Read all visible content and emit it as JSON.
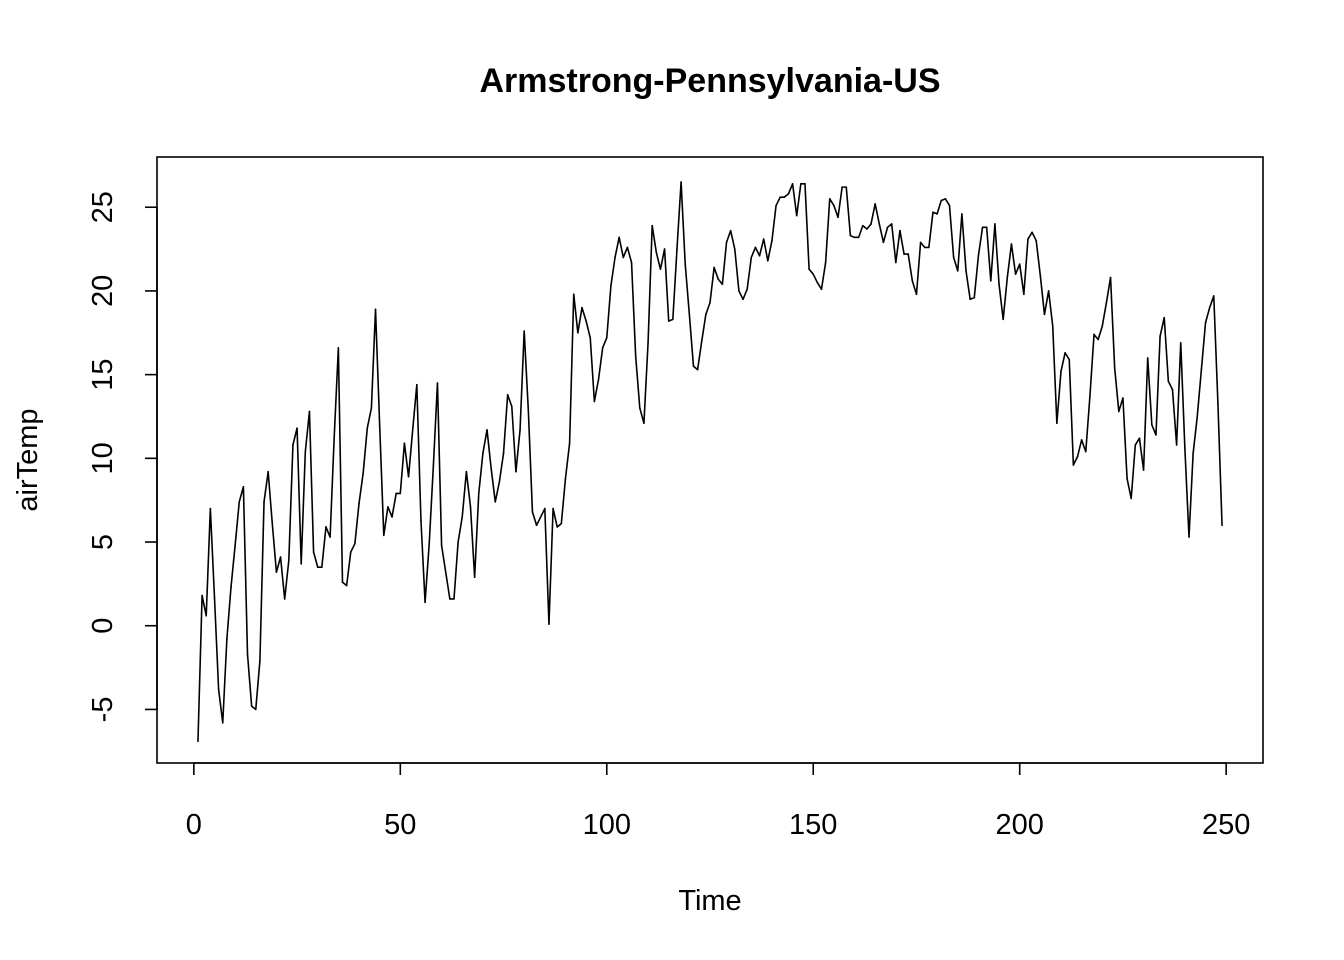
{
  "chart_data": {
    "type": "line",
    "title": "Armstrong-Pennsylvania-US",
    "xlabel": "Time",
    "ylabel": "airTemp",
    "xlim": [
      -8.92,
      258.92
    ],
    "ylim": [
      -8.2,
      28.0
    ],
    "x_ticks": [
      0,
      50,
      100,
      150,
      200,
      250
    ],
    "x_tick_labels": [
      "0",
      "50",
      "100",
      "150",
      "200",
      "250"
    ],
    "y_ticks": [
      -5,
      0,
      5,
      10,
      15,
      20,
      25
    ],
    "y_tick_labels": [
      "-5",
      "0",
      "5",
      "10",
      "15",
      "20",
      "25"
    ],
    "grid": false,
    "legend": "none",
    "line_color": "#000000",
    "series": [
      {
        "x_start": 1,
        "x_step": 1,
        "values": [
          -6.9,
          1.8,
          0.6,
          7.0,
          1.7,
          -3.8,
          -5.8,
          -0.8,
          2.3,
          4.8,
          7.4,
          8.3,
          -1.7,
          -4.8,
          -5.0,
          -2.1,
          7.4,
          9.2,
          6.1,
          3.2,
          4.1,
          1.6,
          3.9,
          10.8,
          11.8,
          3.7,
          10.4,
          12.8,
          4.4,
          3.5,
          3.5,
          5.9,
          5.3,
          11.3,
          16.6,
          2.6,
          2.4,
          4.4,
          4.9,
          7.3,
          9.1,
          11.8,
          13.0,
          18.9,
          12.0,
          5.4,
          7.1,
          6.5,
          7.9,
          7.9,
          10.9,
          8.9,
          11.7,
          14.4,
          6.3,
          1.4,
          4.9,
          9.5,
          14.5,
          4.8,
          3.2,
          1.6,
          1.6,
          5.0,
          6.5,
          9.2,
          7.1,
          2.9,
          7.9,
          10.3,
          11.7,
          9.4,
          7.4,
          8.6,
          10.3,
          13.8,
          13.1,
          9.2,
          11.7,
          17.6,
          12.9,
          6.8,
          6.0,
          6.5,
          7.0,
          0.1,
          7.0,
          5.9,
          6.1,
          8.8,
          10.9,
          19.8,
          17.5,
          19.0,
          18.2,
          17.2,
          13.4,
          14.7,
          16.6,
          17.2,
          20.3,
          22.0,
          23.2,
          22.0,
          22.6,
          21.7,
          16.1,
          13.0,
          12.1,
          16.9,
          23.9,
          22.3,
          21.3,
          22.5,
          18.2,
          18.3,
          22.5,
          26.5,
          21.6,
          18.6,
          15.5,
          15.3,
          17.0,
          18.6,
          19.3,
          21.4,
          20.7,
          20.4,
          22.9,
          23.6,
          22.5,
          20.0,
          19.5,
          20.1,
          22.0,
          22.6,
          22.1,
          23.1,
          21.8,
          23.0,
          25.1,
          25.6,
          25.6,
          25.8,
          26.4,
          24.5,
          26.4,
          26.4,
          21.3,
          21.0,
          20.5,
          20.1,
          21.7,
          25.5,
          25.1,
          24.4,
          26.2,
          26.2,
          23.3,
          23.2,
          23.2,
          23.9,
          23.7,
          24.0,
          25.2,
          24.0,
          22.9,
          23.8,
          24.0,
          21.7,
          23.6,
          22.2,
          22.2,
          20.6,
          19.8,
          22.9,
          22.6,
          22.6,
          24.7,
          24.6,
          25.4,
          25.5,
          25.1,
          22.0,
          21.2,
          24.6,
          21.2,
          19.5,
          19.6,
          22.1,
          23.8,
          23.8,
          20.6,
          24.0,
          20.4,
          18.3,
          20.8,
          22.8,
          21.0,
          21.6,
          19.8,
          23.1,
          23.5,
          23.0,
          20.9,
          18.6,
          20.0,
          17.9,
          12.1,
          15.2,
          16.3,
          15.9,
          9.6,
          10.1,
          11.1,
          10.4,
          13.7,
          17.4,
          17.1,
          17.9,
          19.3,
          20.8,
          15.4,
          12.8,
          13.6,
          8.8,
          7.6,
          10.8,
          11.2,
          9.3,
          16.0,
          12.0,
          11.4,
          17.3,
          18.4,
          14.6,
          14.1,
          10.8,
          16.9,
          10.6,
          5.3,
          10.3,
          12.5,
          15.3,
          18.1,
          19.0,
          19.7,
          13.3,
          6.0
        ]
      }
    ]
  }
}
